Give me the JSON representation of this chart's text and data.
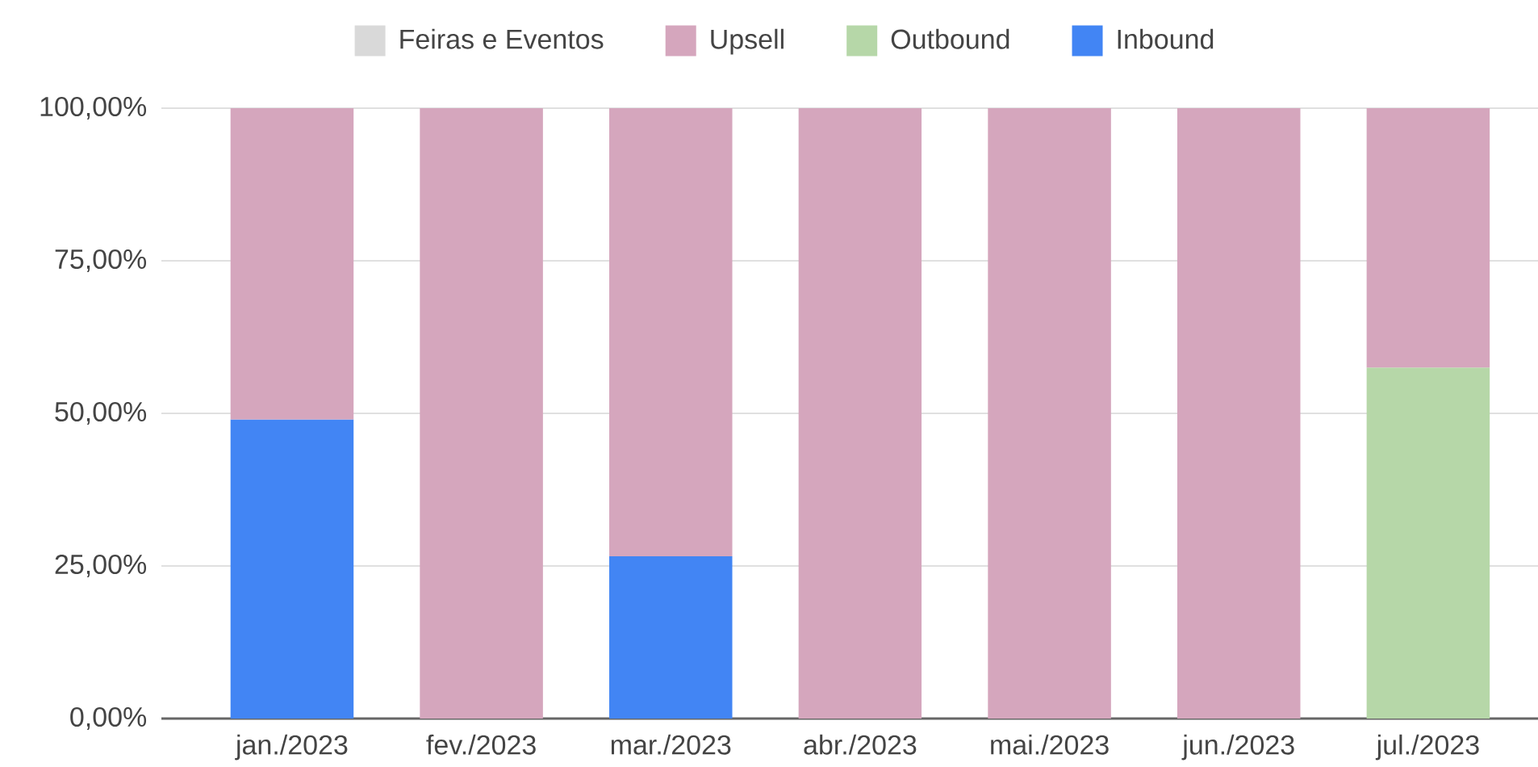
{
  "chart_data": {
    "type": "bar",
    "stacked": true,
    "categories": [
      "jan./2023",
      "fev./2023",
      "mar./2023",
      "abr./2023",
      "mai./2023",
      "jun./2023",
      "jul./2023"
    ],
    "series": [
      {
        "name": "Inbound",
        "color": "#4285f4",
        "values": [
          49,
          null,
          26.6,
          null,
          null,
          null,
          null
        ]
      },
      {
        "name": "Outbound",
        "color": "#b6d7a8",
        "values": [
          null,
          null,
          null,
          null,
          null,
          null,
          57.5
        ]
      },
      {
        "name": "Upsell",
        "color": "#d5a6bd",
        "values": [
          51,
          100,
          73.4,
          100,
          100,
          100,
          42.5
        ]
      },
      {
        "name": "Feiras e Eventos",
        "color": "#d9d9d9",
        "values": [
          null,
          null,
          null,
          null,
          null,
          null,
          null
        ]
      }
    ],
    "ylim": [
      0,
      100
    ],
    "yticks": [
      {
        "value": 0,
        "label": "0,00%"
      },
      {
        "value": 25,
        "label": "25,00%"
      },
      {
        "value": 50,
        "label": "50,00%"
      },
      {
        "value": 75,
        "label": "75,00%"
      },
      {
        "value": 100,
        "label": "100,00%"
      }
    ],
    "grid": "y",
    "legend": "top"
  }
}
